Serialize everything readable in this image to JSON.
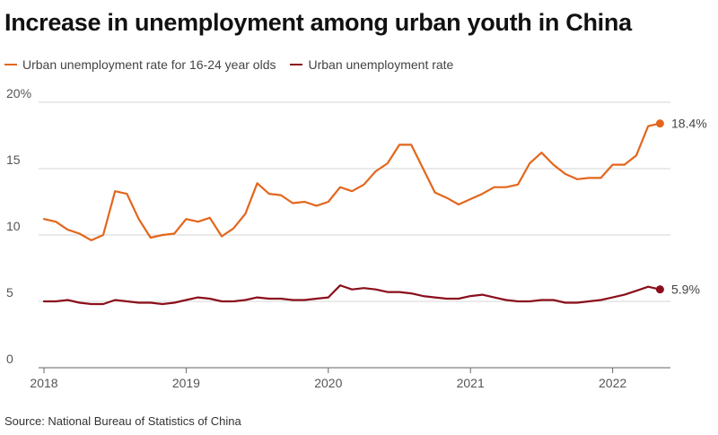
{
  "title": "Increase in unemployment among urban youth in China",
  "source": "Source: National Bureau of Statistics of China",
  "chart_data": {
    "type": "line",
    "title": "Increase in unemployment among urban youth in China",
    "xlabel": "",
    "ylabel": "",
    "x_start": "2018-01",
    "x_tick_labels": [
      "2018",
      "2019",
      "2020",
      "2021",
      "2022"
    ],
    "y_tick_labels": [
      "0",
      "5",
      "10",
      "15",
      "20%"
    ],
    "y_ticks": [
      0,
      5,
      10,
      15,
      20
    ],
    "ylim": [
      0,
      20
    ],
    "grid": true,
    "legend_position": "top-left",
    "series": [
      {
        "name": "Urban unemployment rate for 16-24 year olds",
        "color": "#e3661c",
        "end_label": "18.4%",
        "values": [
          11.2,
          11.0,
          10.4,
          10.1,
          9.6,
          10.0,
          13.3,
          13.1,
          11.2,
          9.8,
          10.0,
          10.1,
          11.2,
          11.0,
          11.3,
          9.9,
          10.5,
          11.6,
          13.9,
          13.1,
          13.0,
          12.4,
          12.5,
          12.2,
          12.5,
          13.6,
          13.3,
          13.8,
          14.8,
          15.4,
          16.8,
          16.8,
          15.0,
          13.2,
          12.8,
          12.3,
          12.7,
          13.1,
          13.6,
          13.6,
          13.8,
          15.4,
          16.2,
          15.3,
          14.6,
          14.2,
          14.3,
          14.3,
          15.3,
          15.3,
          16.0,
          18.2,
          18.4
        ]
      },
      {
        "name": "Urban unemployment rate",
        "color": "#8b0e1a",
        "end_label": "5.9%",
        "values": [
          5.0,
          5.0,
          5.1,
          4.9,
          4.8,
          4.8,
          5.1,
          5.0,
          4.9,
          4.9,
          4.8,
          4.9,
          5.1,
          5.3,
          5.2,
          5.0,
          5.0,
          5.1,
          5.3,
          5.2,
          5.2,
          5.1,
          5.1,
          5.2,
          5.3,
          6.2,
          5.9,
          6.0,
          5.9,
          5.7,
          5.7,
          5.6,
          5.4,
          5.3,
          5.2,
          5.2,
          5.4,
          5.5,
          5.3,
          5.1,
          5.0,
          5.0,
          5.1,
          5.1,
          4.9,
          4.9,
          5.0,
          5.1,
          5.3,
          5.5,
          5.8,
          6.1,
          5.9
        ]
      }
    ]
  }
}
